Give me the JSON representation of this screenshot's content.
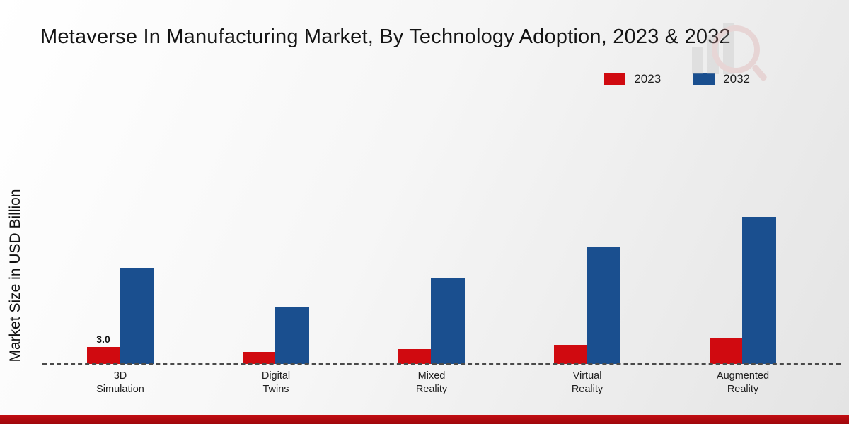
{
  "title": "Metaverse In Manufacturing Market, By Technology Adoption, 2023 & 2032",
  "ylabel": "Market Size in USD Billion",
  "legend": {
    "items": [
      {
        "label": "2023",
        "color": "#d00a10"
      },
      {
        "label": "2032",
        "color": "#1a4f8f"
      }
    ]
  },
  "chart_data": {
    "type": "bar",
    "title": "Metaverse In Manufacturing Market, By Technology Adoption, 2023 & 2032",
    "xlabel": "",
    "ylabel": "Market Size in USD Billion",
    "categories": [
      "3D\nSimulation",
      "Digital\nTwins",
      "Mixed\nReality",
      "Virtual\nReality",
      "Augmented\nReality"
    ],
    "series": [
      {
        "name": "2023",
        "color": "#d00a10",
        "values": [
          3.0,
          2.1,
          2.6,
          3.4,
          4.5
        ]
      },
      {
        "name": "2032",
        "color": "#1a4f8f",
        "values": [
          17.0,
          10.1,
          15.2,
          20.6,
          26.0
        ]
      }
    ],
    "annotations": [
      {
        "category_index": 0,
        "series_index": 0,
        "text": "3.0"
      }
    ],
    "ylim": [
      0,
      30
    ],
    "grid": false,
    "legend_position": "top-right",
    "baseline_style": "dashed"
  }
}
